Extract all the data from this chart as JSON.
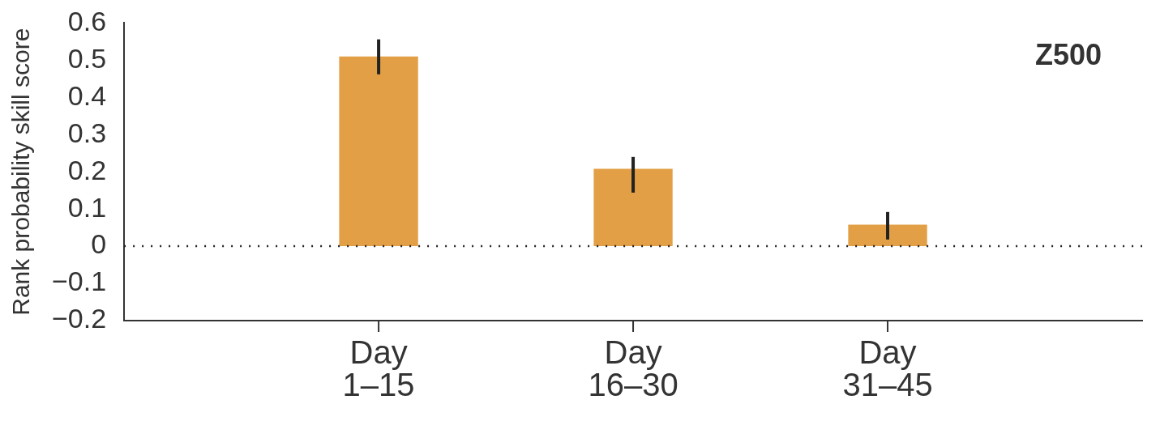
{
  "chart_data": {
    "type": "bar",
    "ylabel": "Rank probability skill score",
    "categories": [
      "Day 1–15",
      "Day 16–30",
      "Day 31–45"
    ],
    "values": [
      0.51,
      0.208,
      0.058
    ],
    "color": "#e39f45",
    "errors": [
      [
        0.462,
        0.556
      ],
      [
        0.144,
        0.24
      ],
      [
        0.018,
        0.092
      ]
    ],
    "ylim": [
      -0.2,
      0.6
    ],
    "yticks": [
      {
        "value": -0.2,
        "label": "−0.2"
      },
      {
        "value": -0.1,
        "label": "−0.1"
      },
      0,
      0.1,
      0.2,
      0.3,
      0.4,
      0.5,
      0.6
    ],
    "ref_lines": [
      {
        "axis": "y",
        "value": 0,
        "line_style": "dotted"
      }
    ],
    "annotations": [
      "Z500"
    ],
    "grid": false,
    "legend": false
  }
}
